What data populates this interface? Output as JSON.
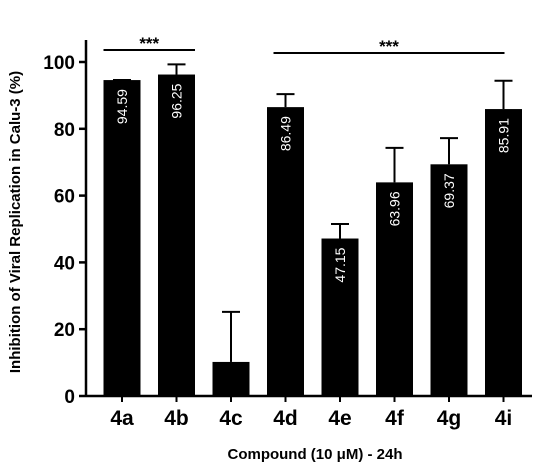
{
  "chart_data": {
    "type": "bar",
    "categories": [
      "4a",
      "4b",
      "4c",
      "4d",
      "4e",
      "4f",
      "4g",
      "4i"
    ],
    "values": [
      94.59,
      96.25,
      10.2,
      86.49,
      47.15,
      63.96,
      69.37,
      85.91
    ],
    "error_upper": [
      94.6,
      99.3,
      25.2,
      90.4,
      51.5,
      74.3,
      77.2,
      94.4
    ],
    "data_labels": [
      "94.59",
      "96.25",
      "",
      "86.49",
      "47.15",
      "63.96",
      "69.37",
      "85.91"
    ],
    "title": "",
    "xlabel": "Compound (10 μM) - 24h",
    "ylabel": "Inhibition of Viral Replication in Calu-3 (%)",
    "ylim": [
      0,
      100
    ],
    "yticks": [
      0,
      20,
      40,
      60,
      80,
      100
    ],
    "grid": false,
    "bar_color": "#000000",
    "label_color": "#ffffff",
    "significance": [
      {
        "from": "4a",
        "to": "4b",
        "label": "***"
      },
      {
        "from": "4d",
        "to": "4i",
        "label": "***"
      }
    ]
  }
}
